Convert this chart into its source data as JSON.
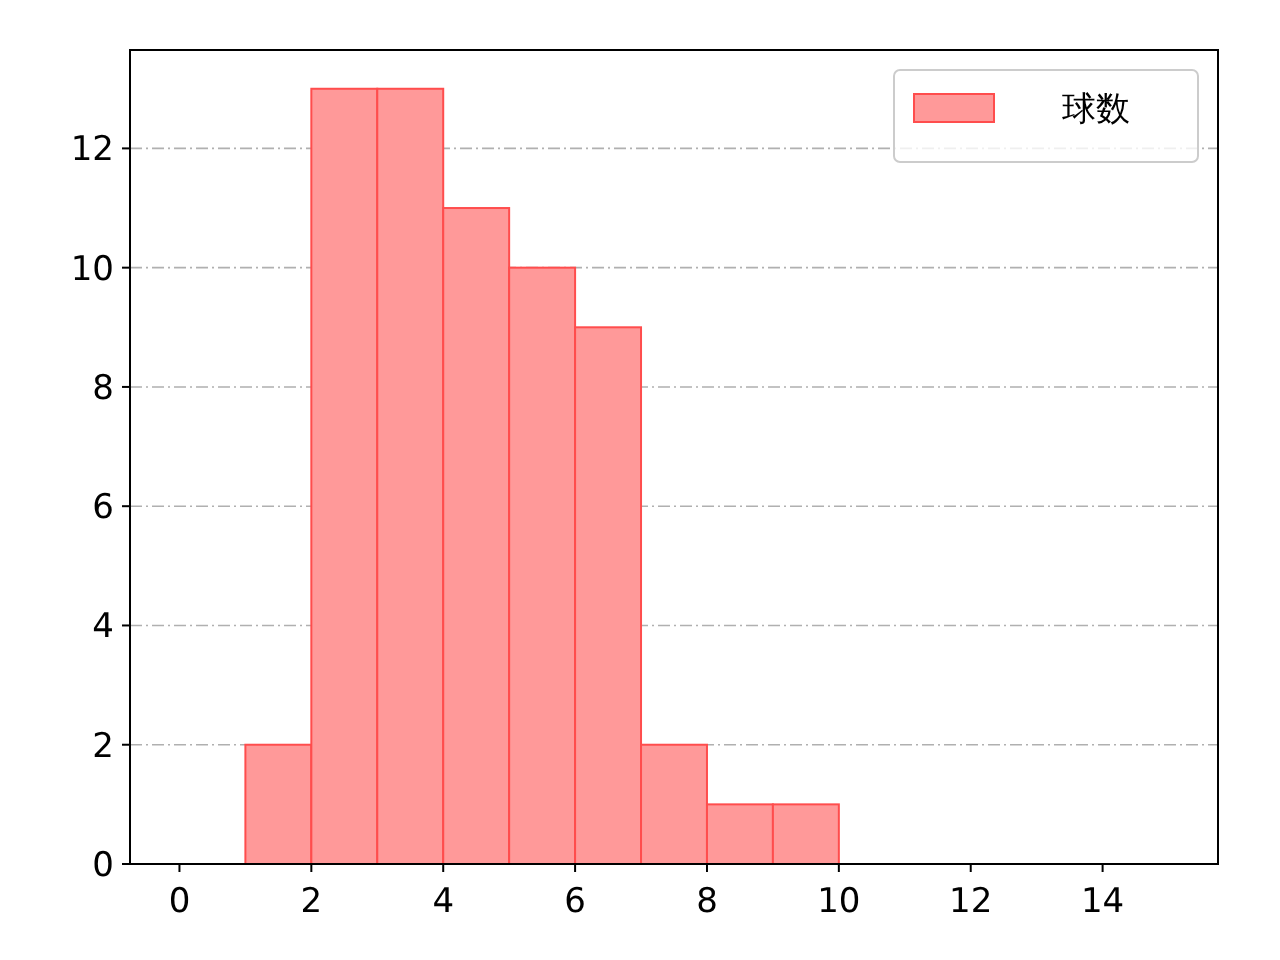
{
  "chart_data": {
    "type": "histogram",
    "bins": [
      1,
      2,
      3,
      4,
      5,
      6,
      7,
      8,
      9,
      10
    ],
    "series": [
      {
        "name": "球数",
        "color": "#ff9999",
        "values": [
          2,
          13,
          13,
          11,
          10,
          9,
          2,
          1,
          1
        ]
      }
    ],
    "xlim": [
      -0.75,
      15.75
    ],
    "xticks": [
      0,
      2,
      4,
      6,
      8,
      10,
      12,
      14
    ],
    "ylim": [
      0,
      13.65
    ],
    "yticks": [
      0,
      2,
      4,
      6,
      8,
      10,
      12
    ],
    "grid": "y",
    "legend": "top right"
  }
}
